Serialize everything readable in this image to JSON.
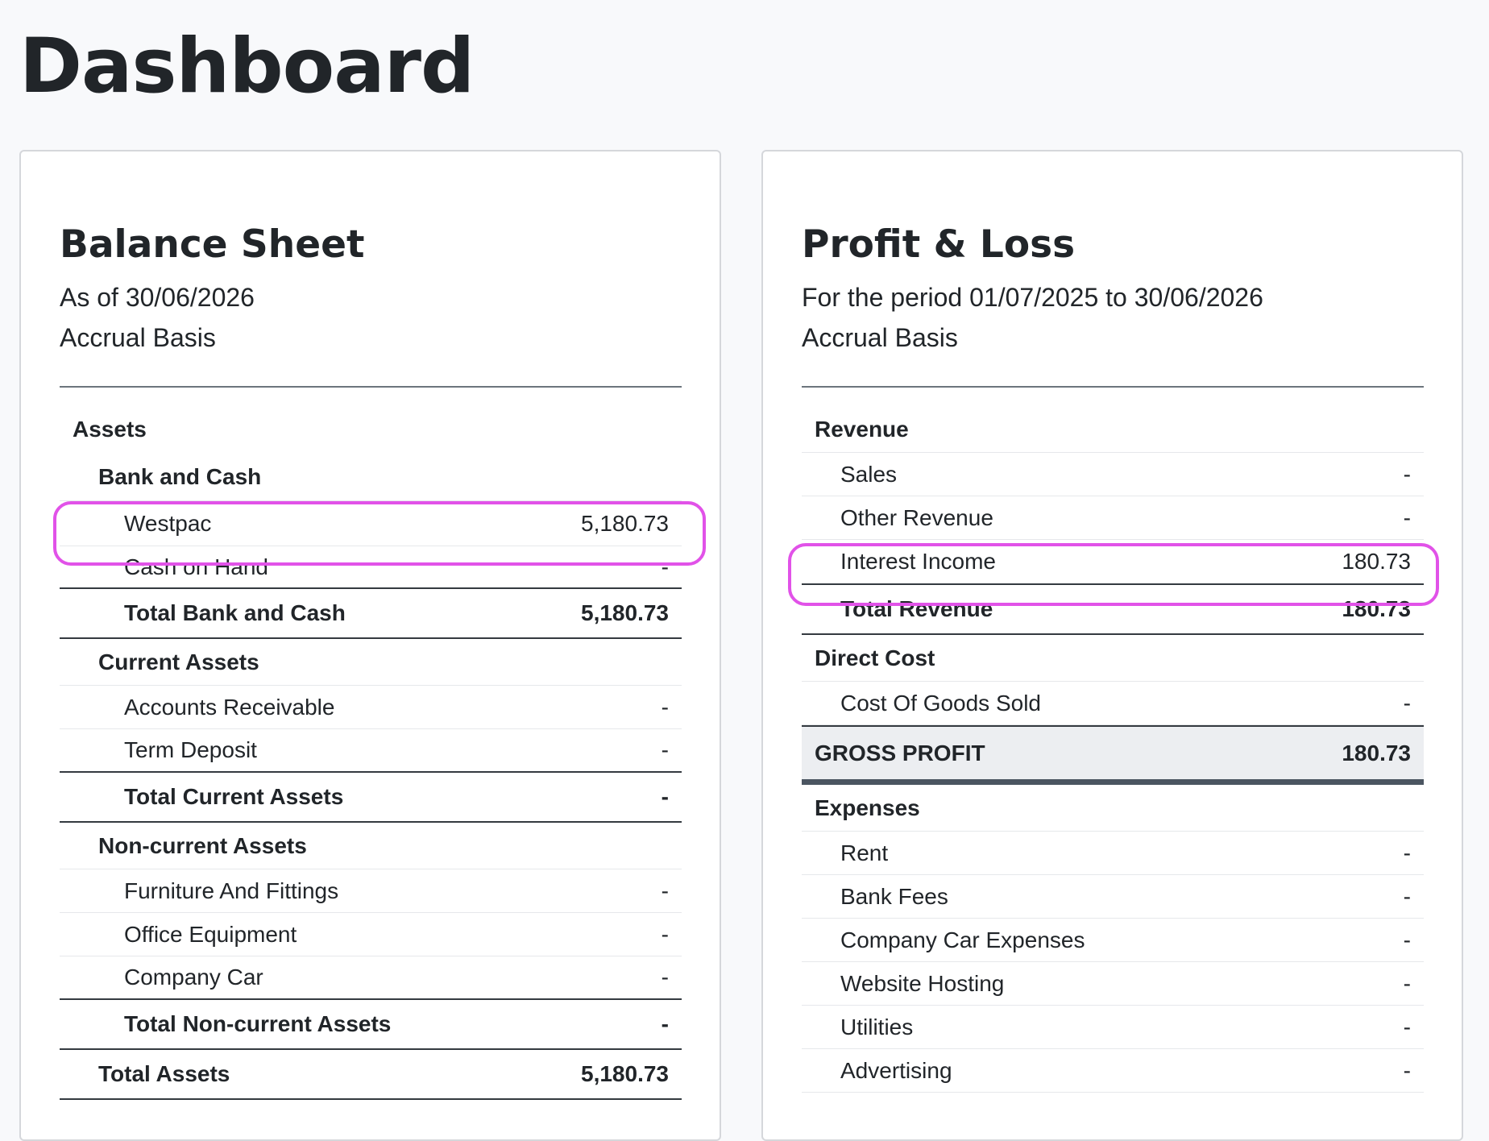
{
  "page": {
    "title": "Dashboard"
  },
  "balance_sheet": {
    "title": "Balance Sheet",
    "as_of": "As of 30/06/2026",
    "basis": "Accrual Basis",
    "assets_label": "Assets",
    "bank_and_cash": {
      "label": "Bank and Cash",
      "items": [
        {
          "label": "Westpac",
          "value": "5,180.73"
        },
        {
          "label": "Cash on Hand",
          "value": "-"
        }
      ],
      "total_label": "Total Bank and Cash",
      "total_value": "5,180.73"
    },
    "current_assets": {
      "label": "Current Assets",
      "items": [
        {
          "label": "Accounts Receivable",
          "value": "-"
        },
        {
          "label": "Term Deposit",
          "value": "-"
        }
      ],
      "total_label": "Total Current Assets",
      "total_value": "-"
    },
    "non_current_assets": {
      "label": "Non-current Assets",
      "items": [
        {
          "label": "Furniture And Fittings",
          "value": "-"
        },
        {
          "label": "Office Equipment",
          "value": "-"
        },
        {
          "label": "Company Car",
          "value": "-"
        }
      ],
      "total_label": "Total Non-current Assets",
      "total_value": "-"
    },
    "total_assets_label": "Total Assets",
    "total_assets_value": "5,180.73"
  },
  "profit_loss": {
    "title": "Profit & Loss",
    "period": "For the period 01/07/2025 to 30/06/2026",
    "basis": "Accrual Basis",
    "revenue": {
      "label": "Revenue",
      "items": [
        {
          "label": "Sales",
          "value": "-"
        },
        {
          "label": "Other Revenue",
          "value": "-"
        },
        {
          "label": "Interest Income",
          "value": "180.73"
        }
      ],
      "total_label": "Total Revenue",
      "total_value": "180.73"
    },
    "direct_cost": {
      "label": "Direct Cost",
      "items": [
        {
          "label": "Cost Of Goods Sold",
          "value": "-"
        }
      ]
    },
    "gross_profit_label": "GROSS PROFIT",
    "gross_profit_value": "180.73",
    "expenses": {
      "label": "Expenses",
      "items": [
        {
          "label": "Rent",
          "value": "-"
        },
        {
          "label": "Bank Fees",
          "value": "-"
        },
        {
          "label": "Company Car Expenses",
          "value": "-"
        },
        {
          "label": "Website Hosting",
          "value": "-"
        },
        {
          "label": "Utilities",
          "value": "-"
        },
        {
          "label": "Advertising",
          "value": "-"
        }
      ]
    }
  },
  "colors": {
    "highlight": "#e152e8",
    "background": "#f8f9fb",
    "card": "#ffffff",
    "gross_profit_band": "#eceef1"
  }
}
